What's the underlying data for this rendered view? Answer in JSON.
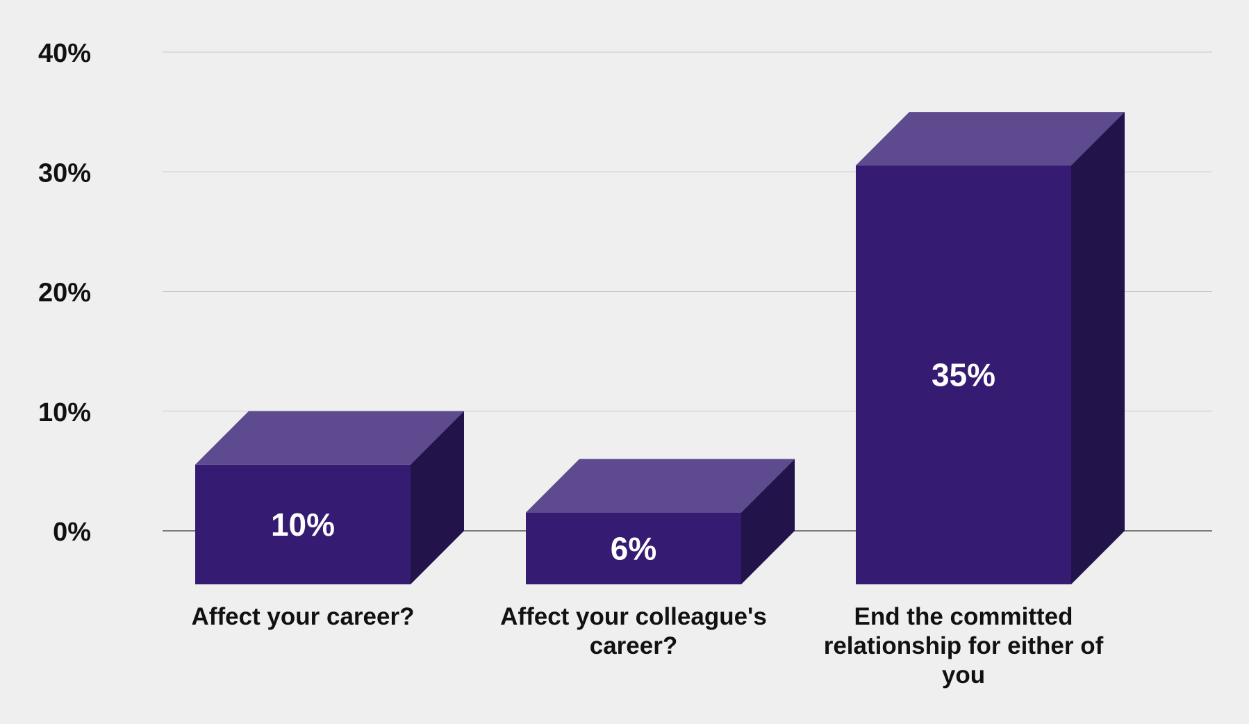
{
  "chart_data": {
    "type": "bar",
    "categories": [
      [
        "Affect your career?"
      ],
      [
        "Affect your colleague's",
        "career?"
      ],
      [
        "End the committed",
        "relationship for either of",
        "you"
      ]
    ],
    "values": [
      10,
      6,
      35
    ],
    "value_labels": [
      "10%",
      "6%",
      "35%"
    ],
    "yticks": [
      "0%",
      "10%",
      "20%",
      "30%",
      "40%"
    ],
    "ylim": [
      0,
      40
    ],
    "grid": true,
    "style": "3d",
    "colors": {
      "front": "#351c72",
      "top": "#5e4a8e",
      "side": "#22134a",
      "grid": "#c9c9c9",
      "baseline": "#555555",
      "background": "#efefef"
    }
  }
}
